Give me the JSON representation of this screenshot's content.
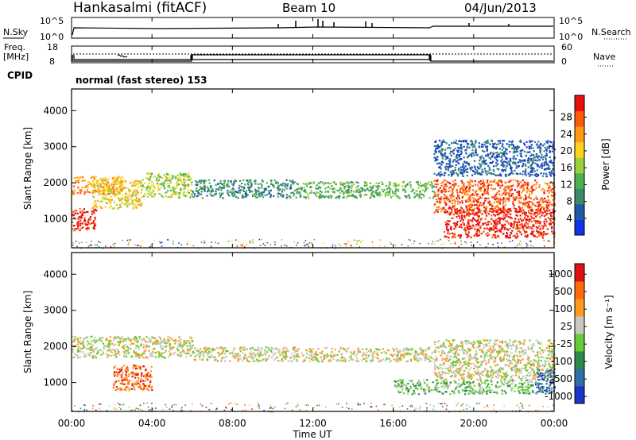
{
  "header": {
    "station": "Hankasalmi (fitACF)",
    "beam": "Beam 10",
    "date": "04/Jun/2013"
  },
  "top_panels": {
    "nsky_label": "N.Sky",
    "nsky_ticks": [
      "10^5",
      "10^0"
    ],
    "nsearch_label": "N.Search",
    "nsearch_ticks": [
      "10^5",
      "10^0"
    ],
    "freq_label_1": "Freq.",
    "freq_label_2": "[MHz]",
    "freq_ticks": [
      "18",
      "8"
    ],
    "nave_label": "Nave",
    "nave_ticks": [
      "60",
      "0"
    ],
    "cpid_label": "CPID",
    "cpid_text": "normal (fast stereo) 153"
  },
  "colors": {
    "power_scale": [
      "#1432e6",
      "#1f5aa8",
      "#3c8a6a",
      "#4caf50",
      "#9bd23c",
      "#ffd21e",
      "#ff9a14",
      "#ff5a0a",
      "#e80f0f"
    ],
    "velocity_scale": [
      "#1a36c8",
      "#2e6fa8",
      "#2e8a4a",
      "#66cc33",
      "#c8c8c0",
      "#ff9a1e",
      "#ff6a0a",
      "#e01010"
    ]
  },
  "chart_data": [
    {
      "type": "heatmap",
      "name": "power",
      "ylabel": "Slant Range [km]",
      "ylim": [
        200,
        4600
      ],
      "yticks": [
        "1000",
        "2000",
        "3000",
        "4000"
      ],
      "xlim": [
        0,
        24
      ],
      "xticks": [
        "00:00",
        "04:00",
        "08:00",
        "12:00",
        "16:00",
        "20:00",
        "00:00"
      ],
      "colorbar_label": "Power [dB]",
      "colorbar_ticks": [
        "4",
        "8",
        "12",
        "16",
        "20",
        "24",
        "28"
      ],
      "bands": [
        {
          "t0": 0.0,
          "t1": 1.2,
          "r0": 700,
          "r1": 1300,
          "level": 8
        },
        {
          "t0": 0.0,
          "t1": 2.5,
          "r0": 1700,
          "r1": 2200,
          "level": 6
        },
        {
          "t0": 1.0,
          "t1": 3.5,
          "r0": 1300,
          "r1": 2100,
          "level": 5
        },
        {
          "t0": 3.5,
          "t1": 6.0,
          "r0": 1600,
          "r1": 2300,
          "level": 4
        },
        {
          "t0": 6.0,
          "t1": 11.0,
          "r0": 1600,
          "r1": 2100,
          "level": 2
        },
        {
          "t0": 11.0,
          "t1": 18.0,
          "r0": 1600,
          "r1": 2050,
          "level": 3
        },
        {
          "t0": 18.0,
          "t1": 24.0,
          "r0": 1200,
          "r1": 2100,
          "level": 7
        },
        {
          "t0": 18.5,
          "t1": 24.0,
          "r0": 500,
          "r1": 1300,
          "level": 8
        },
        {
          "t0": 18.0,
          "t1": 24.0,
          "r0": 2200,
          "r1": 3200,
          "level": 1
        }
      ]
    },
    {
      "type": "heatmap",
      "name": "velocity",
      "ylabel": "Slant Range [km]",
      "ylim": [
        200,
        4600
      ],
      "yticks": [
        "1000",
        "2000",
        "3000",
        "4000"
      ],
      "xlim": [
        0,
        24
      ],
      "xlabel": "Time UT",
      "xticks": [
        "00:00",
        "04:00",
        "08:00",
        "12:00",
        "16:00",
        "20:00",
        "00:00"
      ],
      "colorbar_label": "Velocity [m s⁻¹]",
      "colorbar_ticks": [
        "1000",
        "500",
        "100",
        "25",
        "-25",
        "-100",
        "-500",
        "-1000"
      ],
      "bands": [
        {
          "t0": 0.0,
          "t1": 6.0,
          "r0": 1700,
          "r1": 2300,
          "level": 4
        },
        {
          "t0": 2.0,
          "t1": 4.0,
          "r0": 800,
          "r1": 1500,
          "level": 6
        },
        {
          "t0": 6.0,
          "t1": 18.0,
          "r0": 1600,
          "r1": 2000,
          "level": 4
        },
        {
          "t0": 18.0,
          "t1": 24.0,
          "r0": 1100,
          "r1": 2200,
          "level": 4
        },
        {
          "t0": 16.0,
          "t1": 23.0,
          "r0": 700,
          "r1": 1100,
          "level": 3
        },
        {
          "t0": 23.0,
          "t1": 24.0,
          "r0": 700,
          "r1": 1400,
          "level": 1
        }
      ]
    }
  ]
}
